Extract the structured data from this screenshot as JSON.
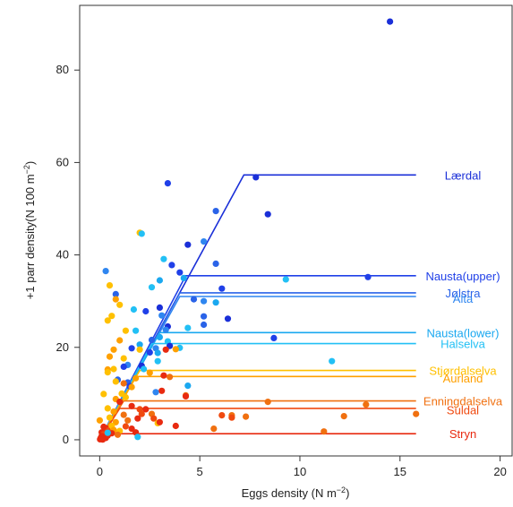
{
  "chart_data": {
    "type": "scatter",
    "xlabel": "Eggs density (N m",
    "xlabel_sup": "−2",
    "xlabel_end": ")",
    "ylabel": "+1 parr density(N 100 m",
    "ylabel_sup": "−2",
    "ylabel_end": ")",
    "xlim": [
      -1,
      20.6
    ],
    "ylim": [
      -3.5,
      94
    ],
    "x_ticks": [
      0,
      5,
      10,
      15,
      20
    ],
    "y_ticks": [
      0,
      20,
      40,
      60,
      80
    ],
    "grid": false,
    "rivers": [
      {
        "name": "Lærdal",
        "color": "#1a2fd8",
        "plateau": 57.3,
        "x_plateau": 7.2,
        "x_end": 15.8,
        "label_y": 57.3
      },
      {
        "name": "Nausta(upper)",
        "color": "#2040e8",
        "plateau": 35.5,
        "x_plateau": 4.3,
        "x_end": 15.8,
        "label_y": 35.5
      },
      {
        "name": "Jølstra",
        "color": "#2a63e8",
        "plateau": 31.8,
        "x_plateau": 4.0,
        "x_end": 15.8,
        "label_y": 31.8
      },
      {
        "name": "Alta",
        "color": "#2f86f0",
        "plateau": 31.0,
        "x_plateau": 4.0,
        "x_end": 15.8,
        "label_y": 30.6
      },
      {
        "name": "Nausta(lower)",
        "color": "#1aa8f0",
        "plateau": 23.2,
        "x_plateau": 3.0,
        "x_end": 15.8,
        "label_y": 23.2
      },
      {
        "name": "Halselva",
        "color": "#22c0f5",
        "plateau": 20.8,
        "x_plateau": 2.6,
        "x_end": 15.8,
        "label_y": 20.8
      },
      {
        "name": "Stjørdalselva",
        "color": "#ffc000",
        "plateau": 15.0,
        "x_plateau": 2.0,
        "x_end": 15.8,
        "label_y": 15.0
      },
      {
        "name": "Aurland",
        "color": "#ffa000",
        "plateau": 13.7,
        "x_plateau": 1.8,
        "x_end": 15.8,
        "label_y": 13.4
      },
      {
        "name": "Enningdalselva",
        "color": "#f07010",
        "plateau": 8.4,
        "x_plateau": 1.2,
        "x_end": 15.8,
        "label_y": 8.4
      },
      {
        "name": "Suldal",
        "color": "#f04a10",
        "plateau": 6.8,
        "x_plateau": 1.0,
        "x_end": 15.8,
        "label_y": 6.5
      },
      {
        "name": "Stryn",
        "color": "#e82a10",
        "plateau": 1.3,
        "x_plateau": 0.3,
        "x_end": 15.8,
        "label_y": 1.3
      }
    ],
    "points": [
      {
        "x": 14.5,
        "y": 90.5,
        "c": "#1a2fd8"
      },
      {
        "x": 7.8,
        "y": 56.8,
        "c": "#1a2fd8"
      },
      {
        "x": 3.4,
        "y": 55.5,
        "c": "#2040e8"
      },
      {
        "x": 5.8,
        "y": 49.5,
        "c": "#2a63e8"
      },
      {
        "x": 8.4,
        "y": 48.8,
        "c": "#1a2fd8"
      },
      {
        "x": 2.0,
        "y": 44.8,
        "c": "#ffc000"
      },
      {
        "x": 2.1,
        "y": 44.6,
        "c": "#22c0f5"
      },
      {
        "x": 5.2,
        "y": 42.9,
        "c": "#2f86f0"
      },
      {
        "x": 4.4,
        "y": 42.2,
        "c": "#1a2fd8"
      },
      {
        "x": 3.2,
        "y": 39.1,
        "c": "#22c0f5"
      },
      {
        "x": 3.6,
        "y": 37.8,
        "c": "#2040e8"
      },
      {
        "x": 5.8,
        "y": 38.1,
        "c": "#2a63e8"
      },
      {
        "x": 0.3,
        "y": 36.5,
        "c": "#2f86f0"
      },
      {
        "x": 4.0,
        "y": 36.2,
        "c": "#2040e8"
      },
      {
        "x": 4.2,
        "y": 35.0,
        "c": "#1aa8f0"
      },
      {
        "x": 9.3,
        "y": 34.7,
        "c": "#22c0f5"
      },
      {
        "x": 13.4,
        "y": 35.2,
        "c": "#2040e8"
      },
      {
        "x": 3.0,
        "y": 34.5,
        "c": "#1aa8f0"
      },
      {
        "x": 0.5,
        "y": 33.4,
        "c": "#ffc000"
      },
      {
        "x": 0.8,
        "y": 31.5,
        "c": "#2a63e8"
      },
      {
        "x": 2.6,
        "y": 33.0,
        "c": "#22c0f5"
      },
      {
        "x": 6.1,
        "y": 32.7,
        "c": "#2040e8"
      },
      {
        "x": 0.8,
        "y": 30.4,
        "c": "#ffa000"
      },
      {
        "x": 4.7,
        "y": 30.4,
        "c": "#2a63e8"
      },
      {
        "x": 5.2,
        "y": 30.0,
        "c": "#2f86f0"
      },
      {
        "x": 5.8,
        "y": 29.7,
        "c": "#1aa8f0"
      },
      {
        "x": 1.0,
        "y": 29.2,
        "c": "#ffc000"
      },
      {
        "x": 1.7,
        "y": 28.2,
        "c": "#22c0f5"
      },
      {
        "x": 2.3,
        "y": 27.8,
        "c": "#2040e8"
      },
      {
        "x": 3.0,
        "y": 28.6,
        "c": "#1a2fd8"
      },
      {
        "x": 3.1,
        "y": 26.9,
        "c": "#2f86f0"
      },
      {
        "x": 0.6,
        "y": 26.8,
        "c": "#ffc000"
      },
      {
        "x": 5.2,
        "y": 26.7,
        "c": "#2a63e8"
      },
      {
        "x": 6.4,
        "y": 26.2,
        "c": "#1a2fd8"
      },
      {
        "x": 0.4,
        "y": 25.8,
        "c": "#ffc000"
      },
      {
        "x": 3.4,
        "y": 24.5,
        "c": "#1a2fd8"
      },
      {
        "x": 4.4,
        "y": 24.2,
        "c": "#22c0f5"
      },
      {
        "x": 3.3,
        "y": 23.8,
        "c": "#2f86f0"
      },
      {
        "x": 1.3,
        "y": 23.6,
        "c": "#ffc000"
      },
      {
        "x": 1.8,
        "y": 23.6,
        "c": "#22c0f5"
      },
      {
        "x": 5.2,
        "y": 24.9,
        "c": "#2a63e8"
      },
      {
        "x": 3.0,
        "y": 22.2,
        "c": "#1aa8f0"
      },
      {
        "x": 8.7,
        "y": 22.0,
        "c": "#2040e8"
      },
      {
        "x": 2.6,
        "y": 21.6,
        "c": "#2a63e8"
      },
      {
        "x": 3.4,
        "y": 21.3,
        "c": "#22c0f5"
      },
      {
        "x": 1.0,
        "y": 21.5,
        "c": "#ffa000"
      },
      {
        "x": 2.0,
        "y": 20.6,
        "c": "#1aa8f0"
      },
      {
        "x": 3.5,
        "y": 20.3,
        "c": "#1a2fd8"
      },
      {
        "x": 1.6,
        "y": 19.8,
        "c": "#2040e8"
      },
      {
        "x": 2.8,
        "y": 19.8,
        "c": "#2f86f0"
      },
      {
        "x": 4.0,
        "y": 19.9,
        "c": "#22c0f5"
      },
      {
        "x": 2.0,
        "y": 19.5,
        "c": "#ffc000"
      },
      {
        "x": 0.7,
        "y": 19.5,
        "c": "#ffa000"
      },
      {
        "x": 3.8,
        "y": 19.6,
        "c": "#ffa000"
      },
      {
        "x": 3.3,
        "y": 19.5,
        "c": "#e82a10"
      },
      {
        "x": 2.5,
        "y": 18.9,
        "c": "#2040e8"
      },
      {
        "x": 2.9,
        "y": 18.8,
        "c": "#1aa8f0"
      },
      {
        "x": 0.5,
        "y": 18.0,
        "c": "#ffa000"
      },
      {
        "x": 1.2,
        "y": 17.6,
        "c": "#ffc000"
      },
      {
        "x": 2.9,
        "y": 17.0,
        "c": "#22c0f5"
      },
      {
        "x": 11.6,
        "y": 17.0,
        "c": "#22c0f5"
      },
      {
        "x": 1.4,
        "y": 16.2,
        "c": "#2f86f0"
      },
      {
        "x": 2.1,
        "y": 16.0,
        "c": "#1a2fd8"
      },
      {
        "x": 0.4,
        "y": 15.2,
        "c": "#ffa000"
      },
      {
        "x": 0.7,
        "y": 15.3,
        "c": "#ffc000"
      },
      {
        "x": 1.2,
        "y": 15.8,
        "c": "#2040e8"
      },
      {
        "x": 2.2,
        "y": 15.3,
        "c": "#22c0f5"
      },
      {
        "x": 0.4,
        "y": 14.6,
        "c": "#ffc000"
      },
      {
        "x": 2.5,
        "y": 14.5,
        "c": "#ffa000"
      },
      {
        "x": 3.2,
        "y": 13.9,
        "c": "#e82a10"
      },
      {
        "x": 0.9,
        "y": 13.0,
        "c": "#2a63e8"
      },
      {
        "x": 1.8,
        "y": 13.3,
        "c": "#ffa000"
      },
      {
        "x": 3.5,
        "y": 13.6,
        "c": "#f07010"
      },
      {
        "x": 1.4,
        "y": 12.4,
        "c": "#2a63e8"
      },
      {
        "x": 0.8,
        "y": 12.6,
        "c": "#ffc000"
      },
      {
        "x": 1.2,
        "y": 12.2,
        "c": "#f07010"
      },
      {
        "x": 1.5,
        "y": 11.6,
        "c": "#2040e8"
      },
      {
        "x": 4.4,
        "y": 11.7,
        "c": "#1aa8f0"
      },
      {
        "x": 1.6,
        "y": 11.4,
        "c": "#ffa000"
      },
      {
        "x": 1.1,
        "y": 10.0,
        "c": "#ffc000"
      },
      {
        "x": 3.1,
        "y": 10.6,
        "c": "#e82a10"
      },
      {
        "x": 2.8,
        "y": 10.3,
        "c": "#2f86f0"
      },
      {
        "x": 4.3,
        "y": 9.6,
        "c": "#f07010"
      },
      {
        "x": 0.2,
        "y": 9.9,
        "c": "#ffc000"
      },
      {
        "x": 1.3,
        "y": 9.2,
        "c": "#ffc000"
      },
      {
        "x": 4.3,
        "y": 9.4,
        "c": "#e82a10"
      },
      {
        "x": 0.8,
        "y": 8.8,
        "c": "#ffa000"
      },
      {
        "x": 1.0,
        "y": 8.2,
        "c": "#e82a10"
      },
      {
        "x": 8.4,
        "y": 8.2,
        "c": "#f07010"
      },
      {
        "x": 13.3,
        "y": 7.6,
        "c": "#f07010"
      },
      {
        "x": 1.6,
        "y": 7.3,
        "c": "#e82a10"
      },
      {
        "x": 0.4,
        "y": 6.8,
        "c": "#ffc000"
      },
      {
        "x": 2.0,
        "y": 6.6,
        "c": "#f04a10"
      },
      {
        "x": 2.3,
        "y": 6.6,
        "c": "#e82a10"
      },
      {
        "x": 0.7,
        "y": 6.1,
        "c": "#ffa000"
      },
      {
        "x": 1.2,
        "y": 5.4,
        "c": "#f07010"
      },
      {
        "x": 2.1,
        "y": 5.6,
        "c": "#f04a10"
      },
      {
        "x": 2.6,
        "y": 5.6,
        "c": "#f07010"
      },
      {
        "x": 0.5,
        "y": 4.8,
        "c": "#ffc000"
      },
      {
        "x": 1.9,
        "y": 4.6,
        "c": "#e82a10"
      },
      {
        "x": 2.7,
        "y": 4.6,
        "c": "#f04a10"
      },
      {
        "x": 6.1,
        "y": 5.3,
        "c": "#f04a10"
      },
      {
        "x": 6.6,
        "y": 5.3,
        "c": "#f07010"
      },
      {
        "x": 7.3,
        "y": 5.0,
        "c": "#f07010"
      },
      {
        "x": 6.6,
        "y": 4.8,
        "c": "#f04a10"
      },
      {
        "x": 0.0,
        "y": 4.2,
        "c": "#ffa000"
      },
      {
        "x": 1.4,
        "y": 4.2,
        "c": "#f07010"
      },
      {
        "x": 2.9,
        "y": 3.6,
        "c": "#ffc000"
      },
      {
        "x": 3.0,
        "y": 3.8,
        "c": "#e82a10"
      },
      {
        "x": 0.8,
        "y": 3.8,
        "c": "#ffa000"
      },
      {
        "x": 15.8,
        "y": 5.6,
        "c": "#f07010"
      },
      {
        "x": 12.2,
        "y": 5.1,
        "c": "#f07010"
      },
      {
        "x": 0.6,
        "y": 3.0,
        "c": "#ffc000"
      },
      {
        "x": 3.8,
        "y": 3.0,
        "c": "#e82a10"
      },
      {
        "x": 5.7,
        "y": 2.4,
        "c": "#f07010"
      },
      {
        "x": 1.3,
        "y": 2.9,
        "c": "#f04a10"
      },
      {
        "x": 0.3,
        "y": 2.5,
        "c": "#e82a10"
      },
      {
        "x": 1.6,
        "y": 2.4,
        "c": "#e82a10"
      },
      {
        "x": 0.4,
        "y": 2.0,
        "c": "#f04a10"
      },
      {
        "x": 0.7,
        "y": 2.1,
        "c": "#ffa000"
      },
      {
        "x": 1.0,
        "y": 1.9,
        "c": "#ffc000"
      },
      {
        "x": 11.2,
        "y": 1.8,
        "c": "#f07010"
      },
      {
        "x": 0.1,
        "y": 1.6,
        "c": "#e82a10"
      },
      {
        "x": 0.6,
        "y": 1.4,
        "c": "#e82a10"
      },
      {
        "x": 1.8,
        "y": 1.6,
        "c": "#e82a10"
      },
      {
        "x": 0.2,
        "y": 1.2,
        "c": "#f04a10"
      },
      {
        "x": 0.9,
        "y": 1.1,
        "c": "#f07010"
      },
      {
        "x": 0.4,
        "y": 0.9,
        "c": "#e82a10"
      },
      {
        "x": 0.1,
        "y": 0.8,
        "c": "#e82a10"
      },
      {
        "x": 0.2,
        "y": 0.6,
        "c": "#e82a10"
      },
      {
        "x": 0.05,
        "y": 0.4,
        "c": "#e82a10"
      },
      {
        "x": 0.3,
        "y": 0.4,
        "c": "#e82a10"
      },
      {
        "x": 0.1,
        "y": 0.2,
        "c": "#e82a10"
      },
      {
        "x": 0.02,
        "y": 0.1,
        "c": "#e82a10"
      },
      {
        "x": 0.15,
        "y": 0.05,
        "c": "#e82a10"
      },
      {
        "x": 1.9,
        "y": 0.6,
        "c": "#22c0f5"
      },
      {
        "x": 0.4,
        "y": 1.5,
        "c": "#22c0f5"
      },
      {
        "x": 0.2,
        "y": 2.8,
        "c": "#e82a10"
      }
    ]
  }
}
